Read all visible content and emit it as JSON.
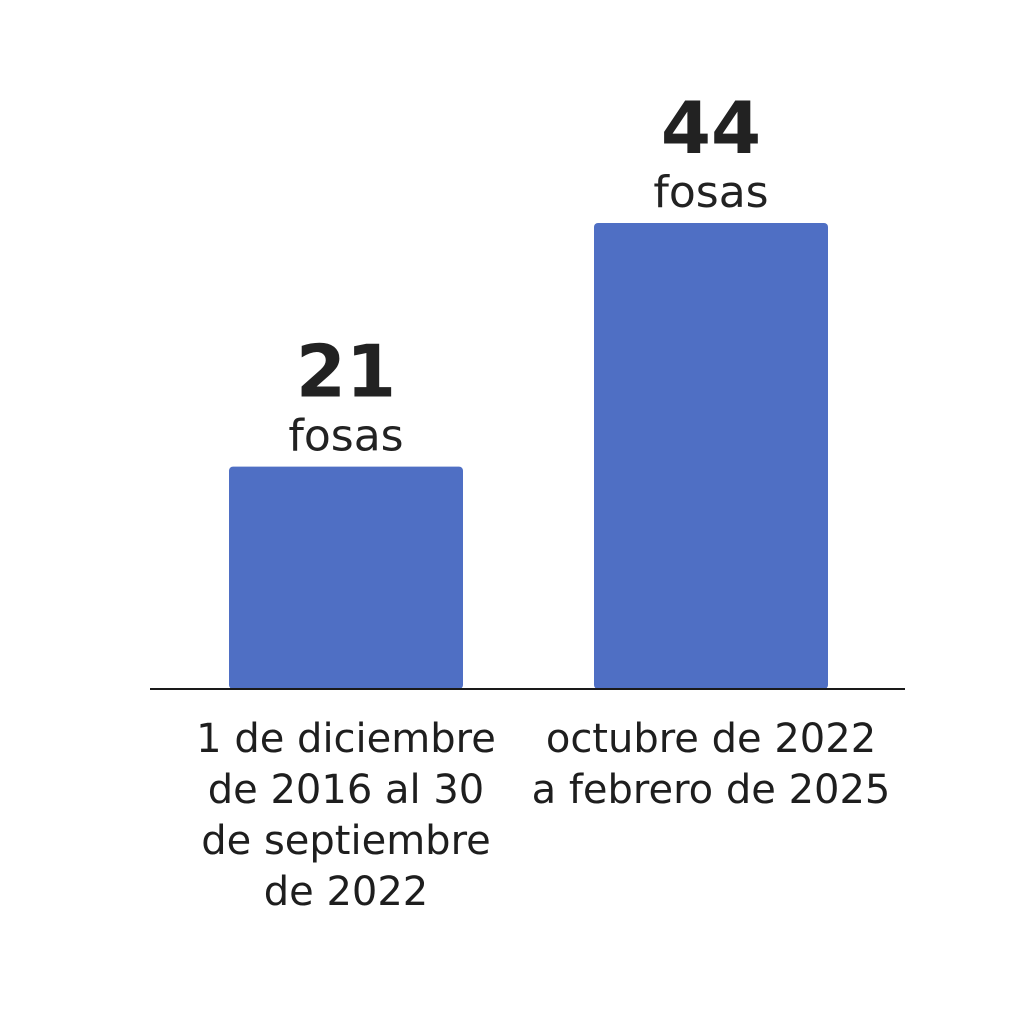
{
  "chart_data": {
    "type": "bar",
    "categories": [
      "1 de diciembre de 2016 al 30 de septiembre de 2022",
      "octubre de 2022 a febrero de 2025"
    ],
    "category_lines": [
      [
        "1 de diciembre",
        "de 2016 al 30",
        "de septiembre",
        "de 2022"
      ],
      [
        "octubre de 2022",
        "a febrero de 2025"
      ]
    ],
    "values": [
      21,
      44
    ],
    "value_unit": "fosas",
    "ylim": [
      0,
      50
    ],
    "grid": false,
    "legend": "none",
    "bar_color": "#4f6fc4",
    "text_color": "#222222"
  }
}
